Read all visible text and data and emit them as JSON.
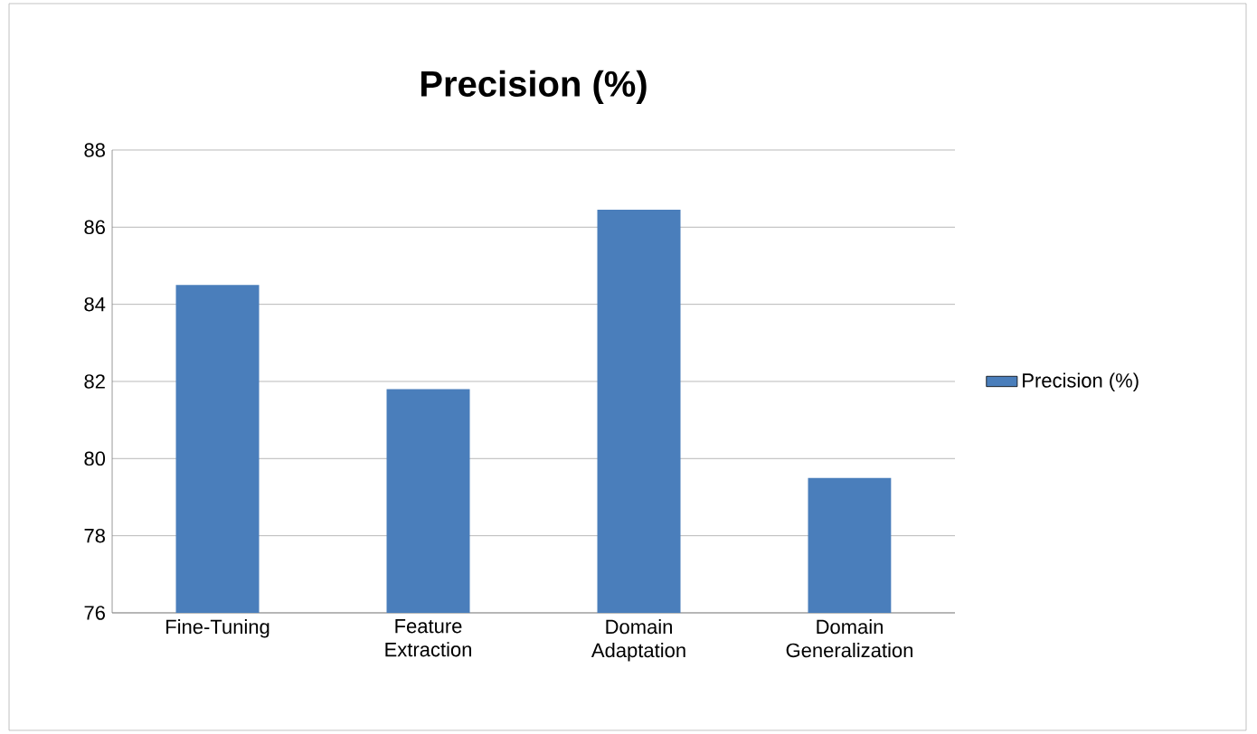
{
  "chart_data": {
    "type": "bar",
    "title": "Precision (%)",
    "categories": [
      "Fine-Tuning",
      "Feature Extraction",
      "Domain Adaptation",
      "Domain Generalization"
    ],
    "series": [
      {
        "name": "Precision (%)",
        "color": "#4a7ebb",
        "values": [
          84.5,
          81.8,
          86.45,
          79.5
        ]
      }
    ],
    "ylim": [
      76,
      88
    ],
    "yticks": [
      76,
      78,
      80,
      82,
      84,
      86,
      88
    ],
    "grid": "y",
    "legend": "right"
  }
}
